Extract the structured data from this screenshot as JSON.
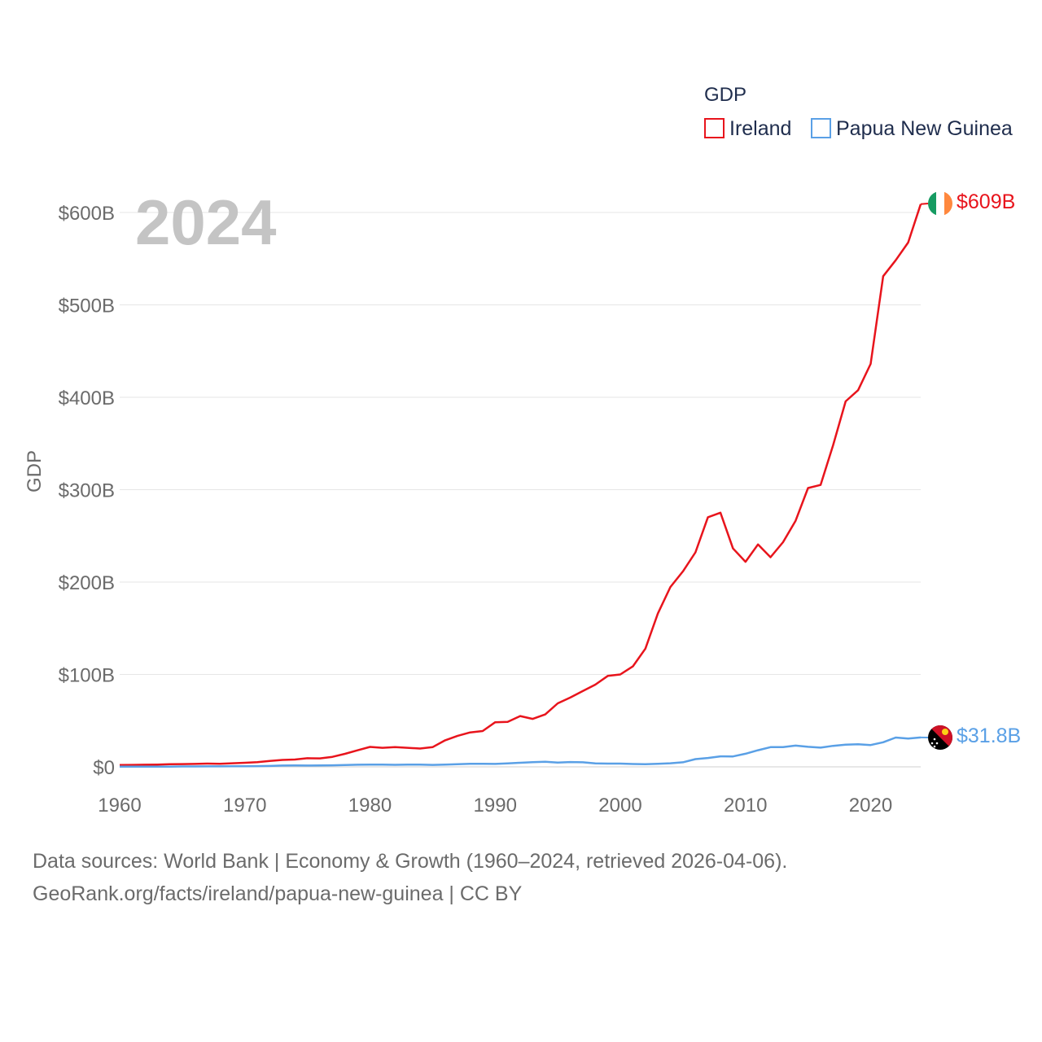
{
  "chart_data": {
    "type": "line",
    "legend_title": "GDP",
    "ylabel": "GDP",
    "xlabel": "",
    "year_label": "2024",
    "xlim": [
      1960,
      2024
    ],
    "ylim": [
      0,
      600
    ],
    "x_ticks": [
      1960,
      1970,
      1980,
      1990,
      2000,
      2010,
      2020
    ],
    "x_tick_labels": [
      "1960",
      "1970",
      "1980",
      "1990",
      "2000",
      "2010",
      "2020"
    ],
    "y_ticks": [
      0,
      100,
      200,
      300,
      400,
      500,
      600
    ],
    "y_tick_labels": [
      "$0",
      "$100B",
      "$200B",
      "$300B",
      "$400B",
      "$500B",
      "$600B"
    ],
    "legend_position": "top-right",
    "x": [
      1960,
      1961,
      1962,
      1963,
      1964,
      1965,
      1966,
      1967,
      1968,
      1969,
      1970,
      1971,
      1972,
      1973,
      1974,
      1975,
      1976,
      1977,
      1978,
      1979,
      1980,
      1981,
      1982,
      1983,
      1984,
      1985,
      1986,
      1987,
      1988,
      1989,
      1990,
      1991,
      1992,
      1993,
      1994,
      1995,
      1996,
      1997,
      1998,
      1999,
      2000,
      2001,
      2002,
      2003,
      2004,
      2005,
      2006,
      2007,
      2008,
      2009,
      2010,
      2011,
      2012,
      2013,
      2014,
      2015,
      2016,
      2017,
      2018,
      2019,
      2020,
      2021,
      2022,
      2023,
      2024
    ],
    "series": [
      {
        "name": "Ireland",
        "color": "#e8141c",
        "end_label": "$609B",
        "flag": "ireland-flag",
        "values": [
          1.9,
          2.1,
          2.3,
          2.5,
          2.8,
          3.0,
          3.2,
          3.5,
          3.3,
          3.9,
          4.4,
          5.0,
          6.3,
          7.5,
          7.9,
          9.3,
          9.2,
          10.8,
          14.1,
          17.9,
          21.6,
          20.6,
          21.3,
          20.6,
          19.8,
          21.3,
          28.7,
          33.6,
          37.3,
          38.8,
          48.3,
          48.6,
          55.0,
          51.9,
          56.7,
          68.7,
          75.0,
          82.0,
          89.0,
          98.4,
          100.0,
          108.7,
          127.9,
          165.9,
          194.6,
          211.5,
          232.2,
          270.1,
          275.1,
          236.4,
          221.9,
          240.7,
          226.9,
          243.2,
          266.3,
          301.8,
          305.1,
          348.1,
          395.6,
          407.7,
          436.1,
          531.0,
          548.3,
          567.5,
          609.0
        ]
      },
      {
        "name": "Papua New Guinea",
        "color": "#5aa0e6",
        "end_label": "$31.8B",
        "flag": "papua-new-guinea-flag",
        "values": [
          0.2,
          0.2,
          0.3,
          0.3,
          0.3,
          0.4,
          0.4,
          0.5,
          0.5,
          0.6,
          0.7,
          0.8,
          1.0,
          1.4,
          1.5,
          1.4,
          1.5,
          1.7,
          2.0,
          2.3,
          2.5,
          2.4,
          2.2,
          2.4,
          2.4,
          2.1,
          2.4,
          2.8,
          3.3,
          3.3,
          3.2,
          3.8,
          4.4,
          5.0,
          5.5,
          4.6,
          5.2,
          4.9,
          3.8,
          3.5,
          3.5,
          3.1,
          2.9,
          3.3,
          3.9,
          4.9,
          8.4,
          9.6,
          11.4,
          11.3,
          14.2,
          18.0,
          21.3,
          21.3,
          23.0,
          21.7,
          20.8,
          22.7,
          24.0,
          24.5,
          23.6,
          26.6,
          31.7,
          30.6,
          31.8
        ]
      }
    ]
  },
  "footer": {
    "source_line": "Data sources: World Bank | Economy & Growth (1960–2024, retrieved 2026-04-06).",
    "url_line": "GeoRank.org/facts/ireland/papua-new-guinea | CC BY"
  }
}
